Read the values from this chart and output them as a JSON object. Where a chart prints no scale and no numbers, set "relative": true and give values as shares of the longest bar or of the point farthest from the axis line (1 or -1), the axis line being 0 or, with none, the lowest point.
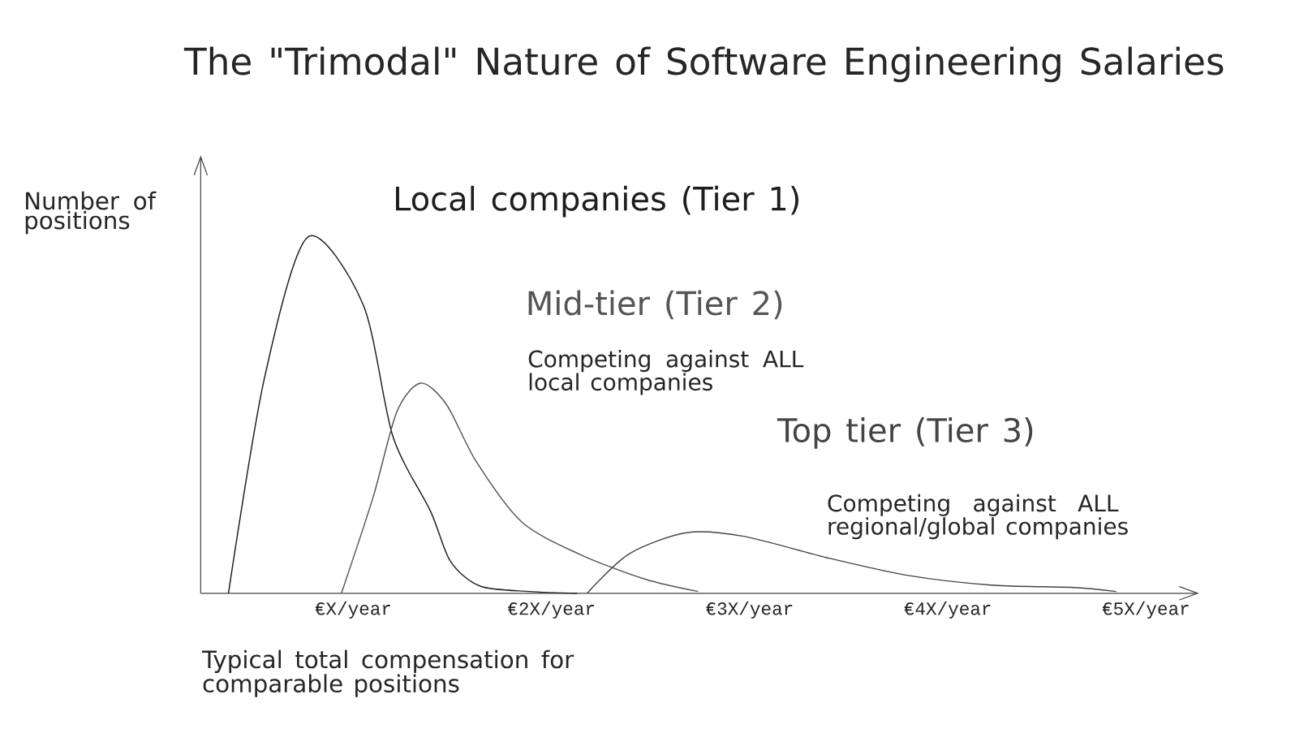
{
  "chart_data": {
    "type": "line",
    "relative": true,
    "legend": false,
    "title": "The \"Trimodal\" Nature of Software Engineering Salaries",
    "xlim": [
      0.23,
      5.26
    ],
    "xticks": [
      {
        "value": 1,
        "label": "€X/year"
      },
      {
        "value": 2,
        "label": "€2X/year"
      },
      {
        "value": 3,
        "label": "€3X/year"
      },
      {
        "value": 4,
        "label": "€4X/year"
      },
      {
        "value": 5,
        "label": "€5X/year"
      }
    ],
    "series": [
      {
        "name": "Local companies (Tier 1)",
        "color": "#1e1e1e",
        "x": [
          0.37,
          0.55,
          0.77,
          1.05,
          1.2,
          1.39,
          1.49,
          1.64,
          1.89,
          2.13
        ],
        "values": [
          0,
          0.6,
          1,
          0.81,
          0.44,
          0.23,
          0.09,
          0.02,
          0.005,
          0
        ]
      },
      {
        "name": "Mid-tier (Tier 2)",
        "color": "#555555",
        "x": [
          0.94,
          1.1,
          1.22,
          1.34,
          1.47,
          1.62,
          1.85,
          2.14,
          2.47,
          2.74
        ],
        "values": [
          0,
          0.27,
          0.51,
          0.59,
          0.53,
          0.37,
          0.2,
          0.11,
          0.04,
          0.005
        ]
      },
      {
        "name": "Top tier (Tier 3)",
        "color": "#444444",
        "x": [
          2.18,
          2.39,
          2.68,
          2.97,
          3.39,
          3.8,
          4.22,
          4.64,
          4.85
        ],
        "values": [
          0,
          0.11,
          0.17,
          0.16,
          0.1,
          0.05,
          0.023,
          0.016,
          0.005
        ]
      }
    ],
    "annotations": [
      "Competing against ALL local companies",
      "Competing against ALL regional/global companies",
      "Number of positions",
      "Typical total compensation for comparable positions"
    ]
  }
}
